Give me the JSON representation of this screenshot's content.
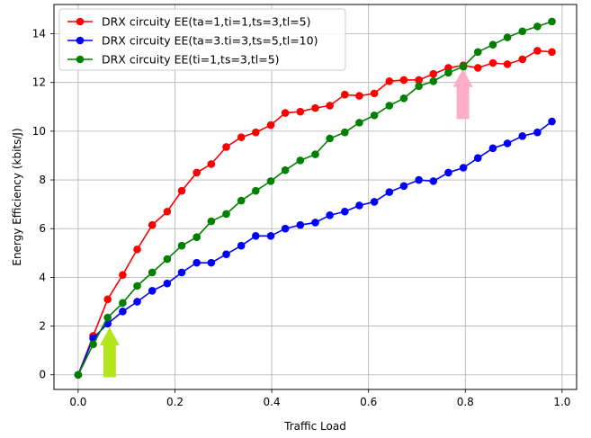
{
  "chart_data": {
    "type": "line",
    "xlabel": "Traffic Load",
    "ylabel": "Energy Efficiency (kbits/J)",
    "xlim": [
      -0.05,
      1.03
    ],
    "ylim": [
      -0.6,
      15.2
    ],
    "xticks": [
      0.0,
      0.2,
      0.4,
      0.6,
      0.8,
      1.0
    ],
    "xtick_labels": [
      "0.0",
      "0.2",
      "0.4",
      "0.6",
      "0.8",
      "1.0"
    ],
    "yticks": [
      0,
      2,
      4,
      6,
      8,
      10,
      12,
      14
    ],
    "ytick_labels": [
      "0",
      "2",
      "4",
      "6",
      "8",
      "10",
      "12",
      "14"
    ],
    "grid": true,
    "legend_position": "top-left",
    "x": [
      0.0,
      0.031,
      0.061,
      0.092,
      0.122,
      0.153,
      0.184,
      0.214,
      0.245,
      0.275,
      0.306,
      0.337,
      0.367,
      0.398,
      0.428,
      0.459,
      0.49,
      0.52,
      0.551,
      0.581,
      0.612,
      0.643,
      0.673,
      0.704,
      0.734,
      0.765,
      0.796,
      0.826,
      0.857,
      0.887,
      0.918,
      0.949,
      0.979
    ],
    "series": [
      {
        "name": "DRX circuity EE(ta=1,ti=1,ts=3,tl=5)",
        "color": "#ff0000",
        "values": [
          0.0,
          1.6,
          3.1,
          4.1,
          5.15,
          6.15,
          6.7,
          7.55,
          8.3,
          8.65,
          9.35,
          9.75,
          9.95,
          10.25,
          10.75,
          10.8,
          10.95,
          11.05,
          11.5,
          11.45,
          11.55,
          12.05,
          12.1,
          12.1,
          12.35,
          12.6,
          12.7,
          12.6,
          12.8,
          12.75,
          12.95,
          13.3,
          13.25
        ]
      },
      {
        "name": "DRX circuity EE(ta=3.ti=3,ts=5,tl=10)",
        "color": "#0000ff",
        "values": [
          0.0,
          1.5,
          2.1,
          2.6,
          3.0,
          3.45,
          3.75,
          4.2,
          4.6,
          4.6,
          4.95,
          5.3,
          5.7,
          5.7,
          6.0,
          6.15,
          6.25,
          6.55,
          6.7,
          6.95,
          7.1,
          7.5,
          7.75,
          8.0,
          7.95,
          8.3,
          8.5,
          8.9,
          9.3,
          9.5,
          9.8,
          9.95,
          10.4
        ]
      },
      {
        "name": "DRX circuity EE(ti=1,ts=3,tl=5)",
        "color": "#008000",
        "values": [
          0.0,
          1.25,
          2.35,
          2.95,
          3.65,
          4.2,
          4.75,
          5.3,
          5.65,
          6.3,
          6.6,
          7.15,
          7.55,
          7.95,
          8.4,
          8.8,
          9.05,
          9.7,
          9.95,
          10.35,
          10.65,
          11.05,
          11.35,
          11.85,
          12.05,
          12.4,
          12.65,
          13.25,
          13.55,
          13.85,
          14.1,
          14.3,
          14.5
        ]
      }
    ],
    "annotations": [
      {
        "type": "arrow",
        "color": "#b5e61d",
        "x": 0.065,
        "y_base": -0.1,
        "y_tip": 1.95
      },
      {
        "type": "arrow",
        "color": "#ffaec9",
        "x": 0.795,
        "y_base": 10.5,
        "y_tip": 12.55
      }
    ]
  }
}
